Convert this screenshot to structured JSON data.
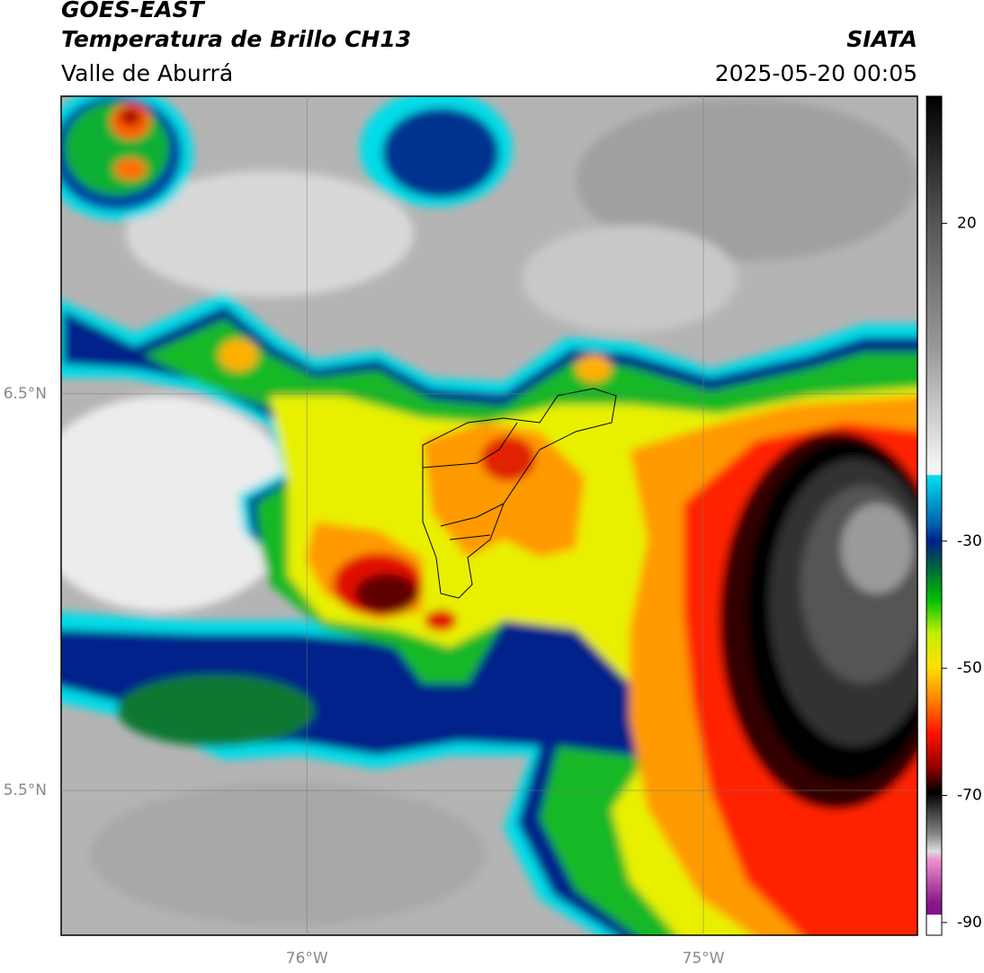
{
  "header": {
    "title": "GOES-EAST",
    "subtitle": "Temperatura de Brillo CH13",
    "region": "Valle de Aburrá",
    "source": "SIATA",
    "datetime": "2025-05-20 00:05"
  },
  "map": {
    "lon_range": [
      -76.62,
      -74.46
    ],
    "lat_range": [
      5.135,
      7.25
    ],
    "lon_ticks": [
      {
        "value": -76,
        "label": "76°W"
      },
      {
        "value": -75,
        "label": "75°W"
      }
    ],
    "lat_ticks": [
      {
        "value": 6.5,
        "label": "6.5°N"
      },
      {
        "value": 5.5,
        "label": "5.5°N"
      }
    ]
  },
  "colorbar": {
    "range": [
      -92,
      40
    ],
    "ticks": [
      20,
      -30,
      -50,
      -70,
      -90
    ]
  }
}
